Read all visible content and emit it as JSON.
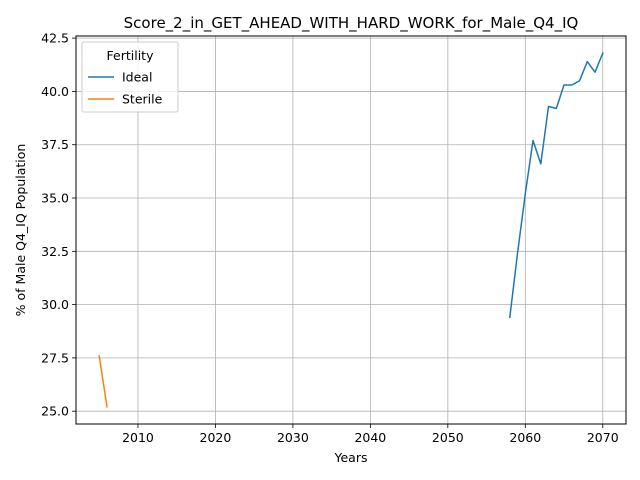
{
  "chart_data": {
    "type": "line",
    "title": "Score_2_in_GET_AHEAD_WITH_HARD_WORK_for_Male_Q4_IQ",
    "xlabel": "Years",
    "ylabel": "% of Male Q4_IQ Population",
    "xlim": [
      2002,
      2073
    ],
    "ylim": [
      24.4,
      42.6
    ],
    "xticks": [
      2010,
      2020,
      2030,
      2040,
      2050,
      2060,
      2070
    ],
    "xtick_labels": [
      "2010",
      "2020",
      "2030",
      "2040",
      "2050",
      "2060",
      "2070"
    ],
    "yticks": [
      25.0,
      27.5,
      30.0,
      32.5,
      35.0,
      37.5,
      40.0,
      42.5
    ],
    "ytick_labels": [
      "25.0",
      "27.5",
      "30.0",
      "32.5",
      "35.0",
      "37.5",
      "40.0",
      "42.5"
    ],
    "grid": true,
    "legend": {
      "title": "Fertility",
      "placement": "upper-left"
    },
    "series": [
      {
        "name": "Ideal",
        "color": "#1f77b4",
        "x": [
          2058,
          2059,
          2060,
          2061,
          2062,
          2063,
          2064,
          2065,
          2066,
          2067,
          2068,
          2069,
          2070
        ],
        "y": [
          29.4,
          32.4,
          35.2,
          37.7,
          36.6,
          39.3,
          39.2,
          40.3,
          40.3,
          40.5,
          41.4,
          40.9,
          41.8
        ]
      },
      {
        "name": "Sterile",
        "color": "#ff7f0e",
        "x": [
          2005,
          2006
        ],
        "y": [
          27.6,
          25.2
        ]
      }
    ]
  }
}
